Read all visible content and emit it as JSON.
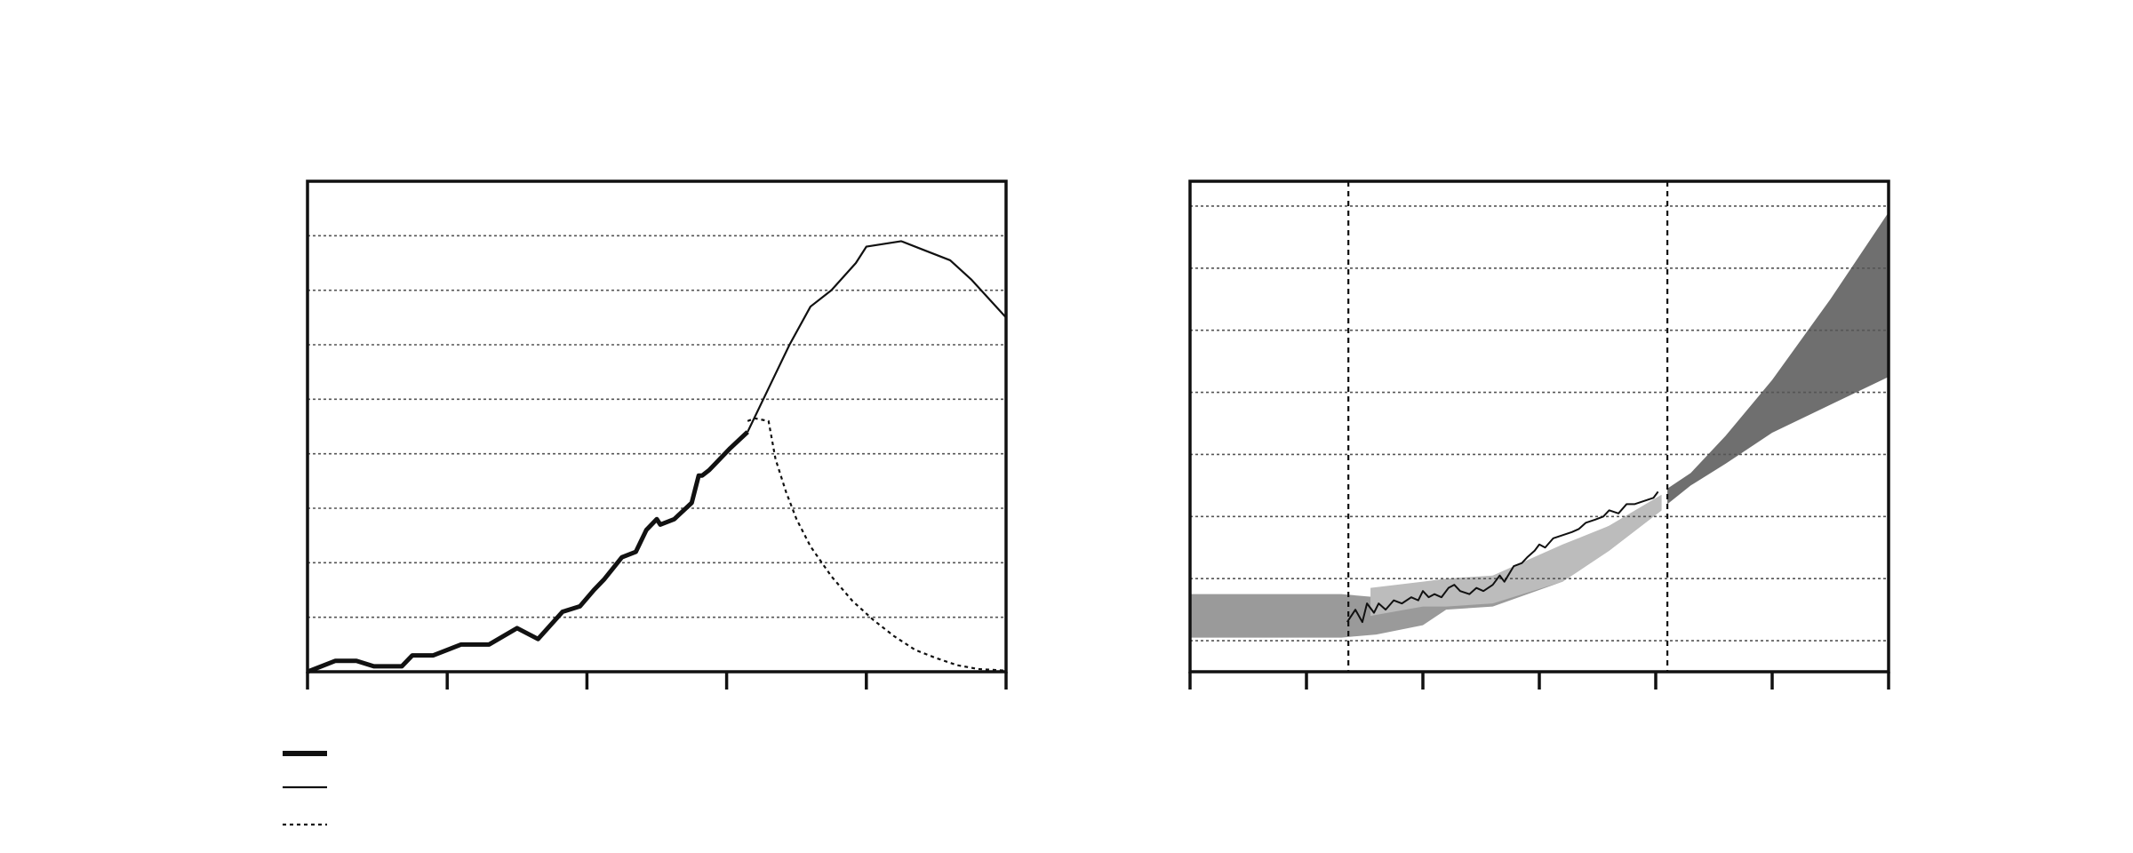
{
  "chart_data": [
    {
      "type": "line",
      "title": "",
      "xlabel": "",
      "ylabel": "",
      "xlim": [
        0,
        100
      ],
      "ylim": [
        0,
        9
      ],
      "grid": "horizontal-dotted",
      "legend_placement": "bottom-left",
      "series": [
        {
          "style": "thick-solid",
          "color": "#111111",
          "x": [
            0,
            4,
            7,
            9.5,
            11,
            13.5,
            15,
            18,
            22,
            26,
            30,
            33,
            36.5,
            39,
            41,
            42.5,
            45,
            47,
            48.5,
            50,
            50.5,
            52.5,
            55,
            56,
            56.5,
            57.5,
            60.5,
            63
          ],
          "y": [
            0,
            0.2,
            0.2,
            0.1,
            0.1,
            0.1,
            0.3,
            0.3,
            0.5,
            0.5,
            0.8,
            0.6,
            1.1,
            1.2,
            1.5,
            1.7,
            2.1,
            2.2,
            2.6,
            2.8,
            2.7,
            2.8,
            3.1,
            3.6,
            3.6,
            3.7,
            4.1,
            4.4
          ]
        },
        {
          "style": "thin-solid",
          "color": "#111111",
          "x": [
            63,
            66,
            69,
            72,
            75,
            78.5,
            80,
            85,
            88,
            92,
            95,
            100
          ],
          "y": [
            4.4,
            5.2,
            6,
            6.7,
            7,
            7.5,
            7.8,
            7.9,
            7.75,
            7.55,
            7.2,
            6.5
          ]
        },
        {
          "style": "dotted",
          "color": "#111111",
          "x": [
            63,
            64,
            66,
            67,
            68.5,
            70,
            72,
            75,
            78,
            81,
            84,
            87,
            90,
            93,
            96,
            100
          ],
          "y": [
            4.6,
            4.65,
            4.6,
            3.9,
            3.3,
            2.8,
            2.3,
            1.75,
            1.3,
            0.95,
            0.65,
            0.4,
            0.25,
            0.12,
            0.05,
            0.02
          ]
        }
      ]
    },
    {
      "type": "area",
      "title": "",
      "xlabel": "",
      "ylabel": "",
      "xlim": [
        0,
        6
      ],
      "ylim": [
        0,
        7.9
      ],
      "grid": "horizontal-dotted",
      "vertical_reference_lines": [
        1.36,
        4.1
      ],
      "bands": [
        {
          "name": "",
          "color": "#9a9a9a",
          "x": [
            0,
            1.3,
            1.6,
            2,
            2.2,
            2.6,
            3.2,
            3.6,
            4.05
          ],
          "upper": [
            1.25,
            1.25,
            1.2,
            1.4,
            1.45,
            1.5,
            2,
            2.35,
            2.85
          ],
          "lower": [
            0.55,
            0.55,
            0.6,
            0.75,
            1,
            1.05,
            1.45,
            1.95,
            2.6
          ]
        },
        {
          "name": "",
          "color": "#bcbcbc",
          "x": [
            1.55,
            2,
            2.2,
            2.6,
            3.2,
            3.6,
            4.05
          ],
          "upper": [
            1.35,
            1.45,
            1.5,
            1.55,
            2.05,
            2.35,
            2.85
          ],
          "lower": [
            0.9,
            1.05,
            1.05,
            1.1,
            1.45,
            1.95,
            2.6
          ]
        },
        {
          "name": "",
          "color": "#6f6f6f",
          "x": [
            4.1,
            4.3,
            4.6,
            5.0,
            5.5,
            6.0
          ],
          "upper": [
            2.95,
            3.2,
            3.8,
            4.7,
            6.0,
            7.4
          ],
          "lower": [
            2.7,
            3.0,
            3.35,
            3.85,
            4.3,
            4.75
          ]
        }
      ],
      "series": [
        {
          "style": "thin-solid",
          "color": "#111111",
          "x": [
            1.35,
            1.42,
            1.48,
            1.52,
            1.58,
            1.62,
            1.68,
            1.75,
            1.82,
            1.9,
            1.96,
            2.0,
            2.05,
            2.1,
            2.16,
            2.22,
            2.27,
            2.32,
            2.4,
            2.46,
            2.52,
            2.6,
            2.66,
            2.7,
            2.78,
            2.85,
            2.9,
            2.96,
            3.0,
            3.05,
            3.12,
            3.2,
            3.28,
            3.34,
            3.4,
            3.48,
            3.55,
            3.6,
            3.68,
            3.75,
            3.82,
            3.9,
            3.98,
            4.02
          ],
          "y": [
            0.8,
            1.0,
            0.8,
            1.1,
            0.95,
            1.1,
            1.0,
            1.15,
            1.1,
            1.2,
            1.15,
            1.3,
            1.2,
            1.25,
            1.2,
            1.35,
            1.4,
            1.3,
            1.25,
            1.35,
            1.3,
            1.4,
            1.55,
            1.45,
            1.7,
            1.75,
            1.85,
            1.95,
            2.05,
            2.0,
            2.15,
            2.2,
            2.25,
            2.3,
            2.4,
            2.45,
            2.5,
            2.6,
            2.55,
            2.7,
            2.7,
            2.75,
            2.8,
            2.9
          ]
        }
      ]
    }
  ]
}
